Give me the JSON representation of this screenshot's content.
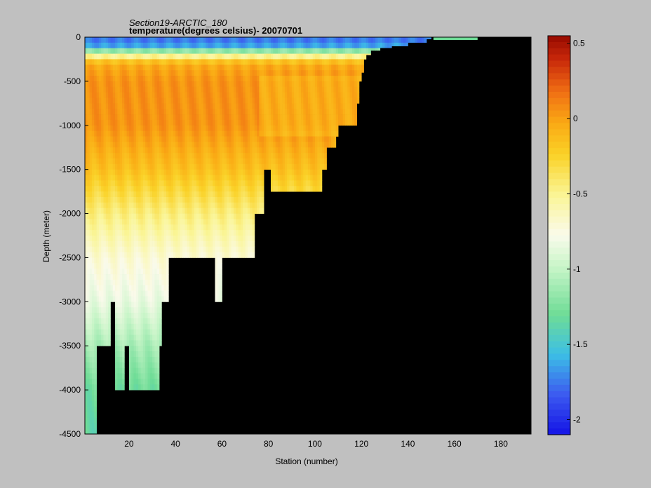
{
  "chart_data": {
    "type": "heatmap",
    "title": "Section19-ARCTIC_180",
    "subtitle": "temperature(degrees  celsius)- 20070701",
    "xlabel": "Station (number)",
    "ylabel": "Depth (meter)",
    "xlim": [
      1,
      193
    ],
    "ylim": [
      -4500,
      0
    ],
    "xticks": [
      20,
      40,
      60,
      80,
      100,
      120,
      140,
      160,
      180
    ],
    "yticks": [
      0,
      -500,
      -1000,
      -1500,
      -2000,
      -2500,
      -3000,
      -3500,
      -4000,
      -4500
    ],
    "colorbar": {
      "vmin": -2.1,
      "vmax": 0.55,
      "ticks": [
        0.5,
        0,
        -0.5,
        -1,
        -1.5,
        -2
      ]
    },
    "bottom_profile": [
      [
        1,
        -4500
      ],
      [
        5,
        -4500
      ],
      [
        6,
        -3500
      ],
      [
        11,
        -3500
      ],
      [
        12,
        -3000
      ],
      [
        13,
        -3000
      ],
      [
        14,
        -4000
      ],
      [
        17,
        -4000
      ],
      [
        18,
        -3500
      ],
      [
        19,
        -3500
      ],
      [
        20,
        -4000
      ],
      [
        32,
        -4000
      ],
      [
        33,
        -3500
      ],
      [
        34,
        -3000
      ],
      [
        36,
        -3000
      ],
      [
        37,
        -2500
      ],
      [
        56,
        -2500
      ],
      [
        57,
        -3000
      ],
      [
        59,
        -3000
      ],
      [
        60,
        -2500
      ],
      [
        73,
        -2500
      ],
      [
        74,
        -2000
      ],
      [
        77,
        -2000
      ],
      [
        78,
        -1500
      ],
      [
        80,
        -1500
      ],
      [
        81,
        -1750
      ],
      [
        102,
        -1750
      ],
      [
        103,
        -1500
      ],
      [
        105,
        -1250
      ],
      [
        108,
        -1250
      ],
      [
        109,
        -1125
      ],
      [
        110,
        -1000
      ],
      [
        117,
        -1000
      ],
      [
        118,
        -750
      ],
      [
        119,
        -500
      ],
      [
        120,
        -400
      ],
      [
        121,
        -250
      ],
      [
        122,
        -200
      ],
      [
        124,
        -150
      ],
      [
        128,
        -120
      ],
      [
        133,
        -100
      ],
      [
        140,
        -60
      ],
      [
        148,
        -20
      ],
      [
        150,
        0
      ],
      [
        193,
        0
      ]
    ],
    "temperature_profile": [
      [
        0,
        -1.8
      ],
      [
        -125,
        -1.6
      ],
      [
        -200,
        -0.6
      ],
      [
        -300,
        -0.05
      ],
      [
        -500,
        0.05
      ],
      [
        -1000,
        0.05
      ],
      [
        -1500,
        -0.15
      ],
      [
        -2000,
        -0.45
      ],
      [
        -2500,
        -0.7
      ],
      [
        -3000,
        -0.85
      ],
      [
        -3500,
        -1.1
      ],
      [
        -4000,
        -1.3
      ],
      [
        -4500,
        -1.35
      ]
    ]
  }
}
